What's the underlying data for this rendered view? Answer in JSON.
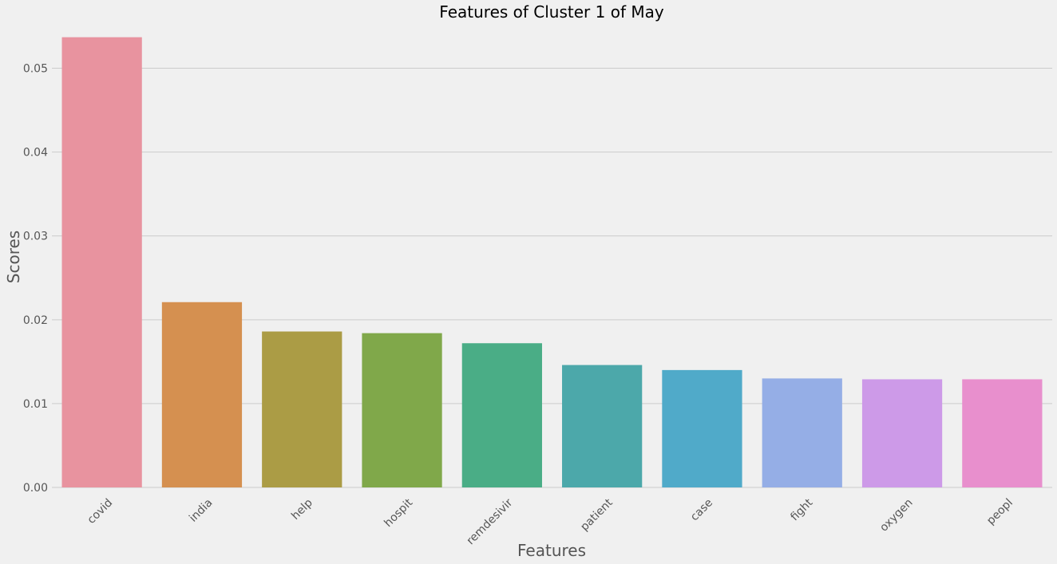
{
  "chart_data": {
    "type": "bar",
    "title": "Features of Cluster 1 of May",
    "xlabel": "Features",
    "ylabel": "Scores",
    "categories": [
      "covid",
      "india",
      "help",
      "hospit",
      "remdesivir",
      "patient",
      "case",
      "fight",
      "oxygen",
      "peopl"
    ],
    "values": [
      0.0537,
      0.0221,
      0.0186,
      0.0184,
      0.0172,
      0.0146,
      0.014,
      0.013,
      0.0129,
      0.0129
    ],
    "colors": [
      "#e8939f",
      "#d59050",
      "#ab9c45",
      "#80a84a",
      "#4aad86",
      "#4ca8aa",
      "#50aac9",
      "#95aee6",
      "#cd9ae8",
      "#e88fcd"
    ],
    "ylim": [
      0,
      0.055
    ],
    "yticks": [
      0.0,
      0.01,
      0.02,
      0.03,
      0.04,
      0.05
    ],
    "ytick_labels": [
      "0.00",
      "0.01",
      "0.02",
      "0.03",
      "0.04",
      "0.05"
    ],
    "grid": true,
    "background": "#f0f0f0",
    "grid_color": "#cbcbcb"
  }
}
